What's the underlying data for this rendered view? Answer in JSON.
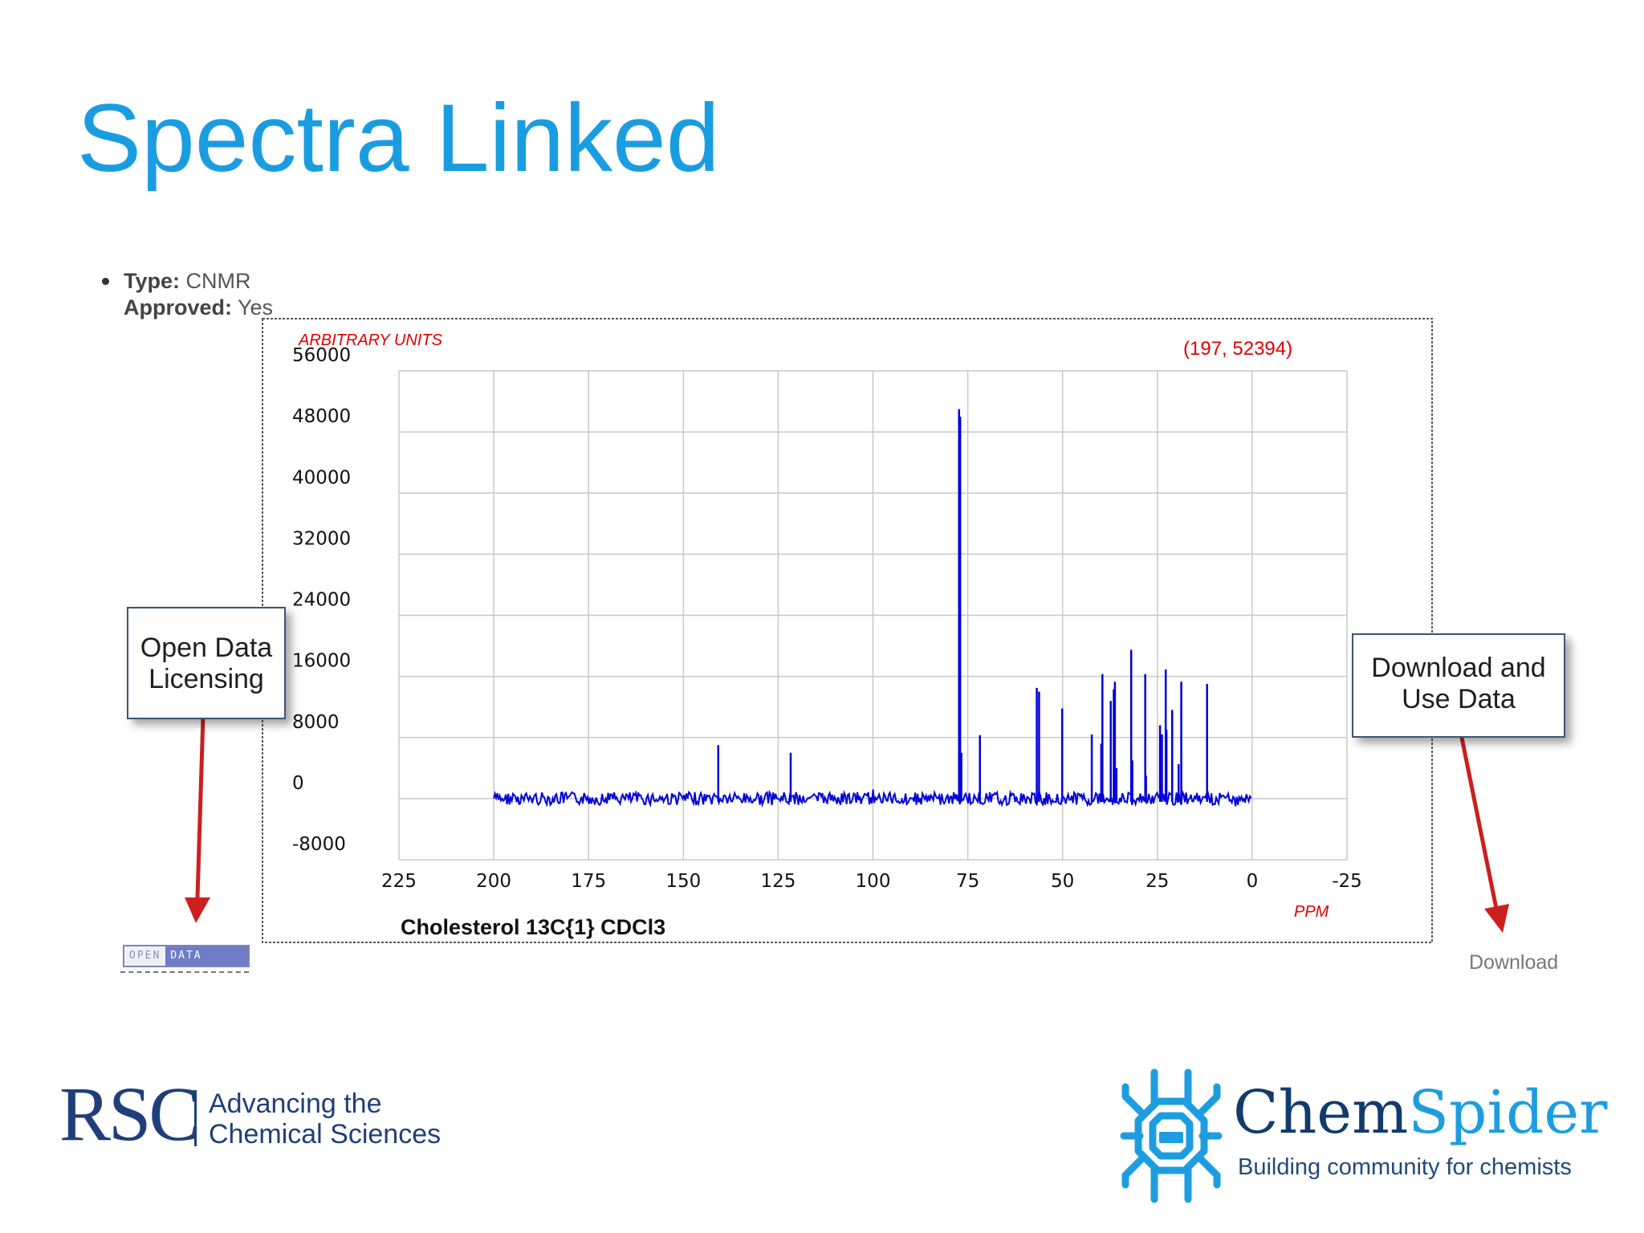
{
  "slide": {
    "title": "Spectra Linked"
  },
  "record": {
    "type_label": "Type:",
    "type_value": "CNMR",
    "approved_label": "Approved:",
    "approved_value": "Yes"
  },
  "chart_data": {
    "type": "line",
    "title": "Cholesterol 13C{1} CDCl3",
    "ylabel": "ARBITRARY UNITS",
    "xlabel": "PPM",
    "cursor_readout": "(197, 52394)",
    "xlim": [
      225,
      -25
    ],
    "ylim": [
      -8000,
      56000
    ],
    "x_ticks": [
      225,
      200,
      175,
      150,
      125,
      100,
      75,
      50,
      25,
      0,
      -25
    ],
    "x_tick_labels": [
      "225",
      "200",
      "175",
      "150",
      "125",
      "100",
      "75",
      "50",
      "25",
      "0",
      "-25"
    ],
    "y_ticks": [
      56000,
      48000,
      40000,
      32000,
      24000,
      16000,
      8000,
      0,
      -8000
    ],
    "y_tick_labels": [
      "56000",
      "48000",
      "40000",
      "32000",
      "24000",
      "16000",
      "8000",
      "0",
      "-8000"
    ],
    "grid": true,
    "baseline_range": [
      200,
      0
    ],
    "series": [
      {
        "color": "#0000dd",
        "peaks": [
          {
            "ppm": 140.8,
            "intensity": 7000
          },
          {
            "ppm": 121.7,
            "intensity": 6000
          },
          {
            "ppm": 77.3,
            "intensity": 51000
          },
          {
            "ppm": 77.0,
            "intensity": 50000
          },
          {
            "ppm": 76.7,
            "intensity": 6000
          },
          {
            "ppm": 71.8,
            "intensity": 8300
          },
          {
            "ppm": 56.8,
            "intensity": 14500
          },
          {
            "ppm": 56.2,
            "intensity": 14000
          },
          {
            "ppm": 50.1,
            "intensity": 11800
          },
          {
            "ppm": 42.3,
            "intensity": 8400
          },
          {
            "ppm": 39.8,
            "intensity": 7200
          },
          {
            "ppm": 39.5,
            "intensity": 16300
          },
          {
            "ppm": 37.3,
            "intensity": 12800
          },
          {
            "ppm": 36.5,
            "intensity": 14300
          },
          {
            "ppm": 36.2,
            "intensity": 15300
          },
          {
            "ppm": 35.8,
            "intensity": 4000
          },
          {
            "ppm": 31.9,
            "intensity": 19500
          },
          {
            "ppm": 31.6,
            "intensity": 5000
          },
          {
            "ppm": 28.2,
            "intensity": 16300
          },
          {
            "ppm": 28.0,
            "intensity": 3000
          },
          {
            "ppm": 24.3,
            "intensity": 9600
          },
          {
            "ppm": 23.8,
            "intensity": 8400
          },
          {
            "ppm": 22.8,
            "intensity": 16900
          },
          {
            "ppm": 22.6,
            "intensity": 9000
          },
          {
            "ppm": 21.1,
            "intensity": 11600
          },
          {
            "ppm": 19.4,
            "intensity": 4500
          },
          {
            "ppm": 18.7,
            "intensity": 15300
          },
          {
            "ppm": 11.9,
            "intensity": 15000
          }
        ]
      }
    ]
  },
  "callouts": {
    "open_line1": "Open Data",
    "open_line2": "Licensing",
    "download_line1": "Download and",
    "download_line2": "Use Data"
  },
  "badge": {
    "part1": "OPEN",
    "part2": "DATA"
  },
  "links": {
    "download": "Download"
  },
  "logos": {
    "rsc_mark": "RSC",
    "rsc_tag_line1": "Advancing the",
    "rsc_tag_line2": "Chemical Sciences",
    "cs_chem": "Chem",
    "cs_spider": "Spider",
    "cs_tagline": "Building community for chemists"
  },
  "colors": {
    "title": "#1a9de0",
    "spectrum_line": "#0000dd",
    "axis_label_red": "#dd0000",
    "arrow_red": "#cc1f1f",
    "rsc_blue": "#1f3f7a",
    "cs_dark": "#123b6d",
    "cs_light": "#1d9de0"
  }
}
